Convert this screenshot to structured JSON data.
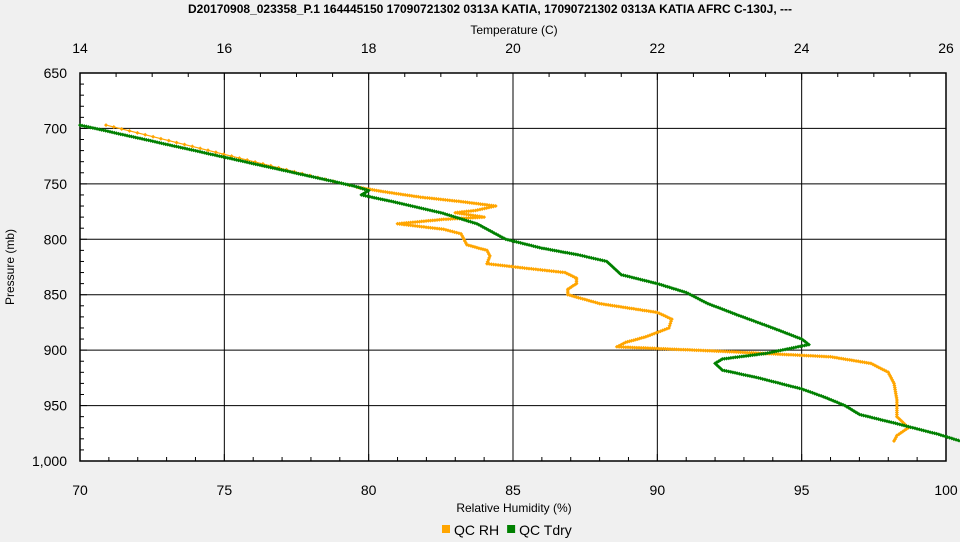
{
  "chart_data": {
    "type": "line",
    "title": "D20170908_023358_P.1 164445150 17090721302 0313A KATIA, 17090721302 0313A KATIA AFRC C-130J, ---",
    "top_axis": {
      "label": "Temperature (C)",
      "range": [
        14,
        26
      ],
      "ticks": [
        "14",
        "16",
        "18",
        "20",
        "22",
        "24",
        "26"
      ]
    },
    "bottom_axis": {
      "label": "Relative Humidity (%)",
      "range": [
        70,
        100
      ],
      "ticks": [
        "70",
        "75",
        "80",
        "85",
        "90",
        "95",
        "100"
      ]
    },
    "y_axis": {
      "label": "Pressure (mb)",
      "range": [
        650,
        1000
      ],
      "inverted": true,
      "ticks": [
        "650",
        "700",
        "750",
        "800",
        "850",
        "900",
        "950",
        "1,000"
      ]
    },
    "grid": true,
    "legend_position": "bottom",
    "series": [
      {
        "name": "QC RH",
        "axis": "bottom",
        "color": "#FFA500",
        "marker": "diamond",
        "points": [
          [
            70.9,
            697
          ],
          [
            79.6,
            753
          ],
          [
            80.5,
            757
          ],
          [
            81.8,
            762
          ],
          [
            83.2,
            766
          ],
          [
            84.4,
            770
          ],
          [
            83.7,
            774
          ],
          [
            83.0,
            776
          ],
          [
            84.0,
            780
          ],
          [
            82.6,
            782
          ],
          [
            81.0,
            786
          ],
          [
            82.6,
            791
          ],
          [
            83.2,
            795
          ],
          [
            83.3,
            800
          ],
          [
            83.4,
            805
          ],
          [
            84.1,
            810
          ],
          [
            84.2,
            815
          ],
          [
            84.1,
            822
          ],
          [
            85.4,
            826
          ],
          [
            86.8,
            830
          ],
          [
            87.2,
            835
          ],
          [
            87.2,
            840
          ],
          [
            86.9,
            845
          ],
          [
            86.9,
            850
          ],
          [
            88.0,
            858
          ],
          [
            90.0,
            866
          ],
          [
            90.5,
            872
          ],
          [
            90.4,
            880
          ],
          [
            89.6,
            888
          ],
          [
            88.9,
            893
          ],
          [
            88.6,
            897
          ],
          [
            92.2,
            901
          ],
          [
            96.0,
            906
          ],
          [
            97.4,
            912
          ],
          [
            98.0,
            920
          ],
          [
            98.2,
            930
          ],
          [
            98.3,
            945
          ],
          [
            98.3,
            960
          ],
          [
            98.7,
            970
          ],
          [
            98.3,
            977
          ],
          [
            98.2,
            982
          ]
        ]
      },
      {
        "name": "QC Tdry",
        "axis": "top",
        "color": "#008000",
        "marker": "diamond",
        "points": [
          [
            14.0,
            697
          ],
          [
            17.8,
            752
          ],
          [
            18.0,
            756
          ],
          [
            17.9,
            760
          ],
          [
            18.4,
            767
          ],
          [
            19.0,
            776
          ],
          [
            19.5,
            786
          ],
          [
            19.9,
            800
          ],
          [
            20.4,
            808
          ],
          [
            20.9,
            814
          ],
          [
            21.3,
            820
          ],
          [
            21.4,
            826
          ],
          [
            21.5,
            832
          ],
          [
            22.0,
            840
          ],
          [
            22.4,
            848
          ],
          [
            22.7,
            858
          ],
          [
            23.1,
            868
          ],
          [
            23.6,
            880
          ],
          [
            24.0,
            890
          ],
          [
            24.1,
            895
          ],
          [
            23.5,
            903
          ],
          [
            22.9,
            908
          ],
          [
            22.8,
            912
          ],
          [
            22.9,
            918
          ],
          [
            23.4,
            925
          ],
          [
            24.0,
            935
          ],
          [
            24.3,
            942
          ],
          [
            24.6,
            950
          ],
          [
            24.8,
            958
          ],
          [
            25.3,
            966
          ],
          [
            25.9,
            976
          ],
          [
            26.2,
            982
          ]
        ]
      }
    ]
  }
}
